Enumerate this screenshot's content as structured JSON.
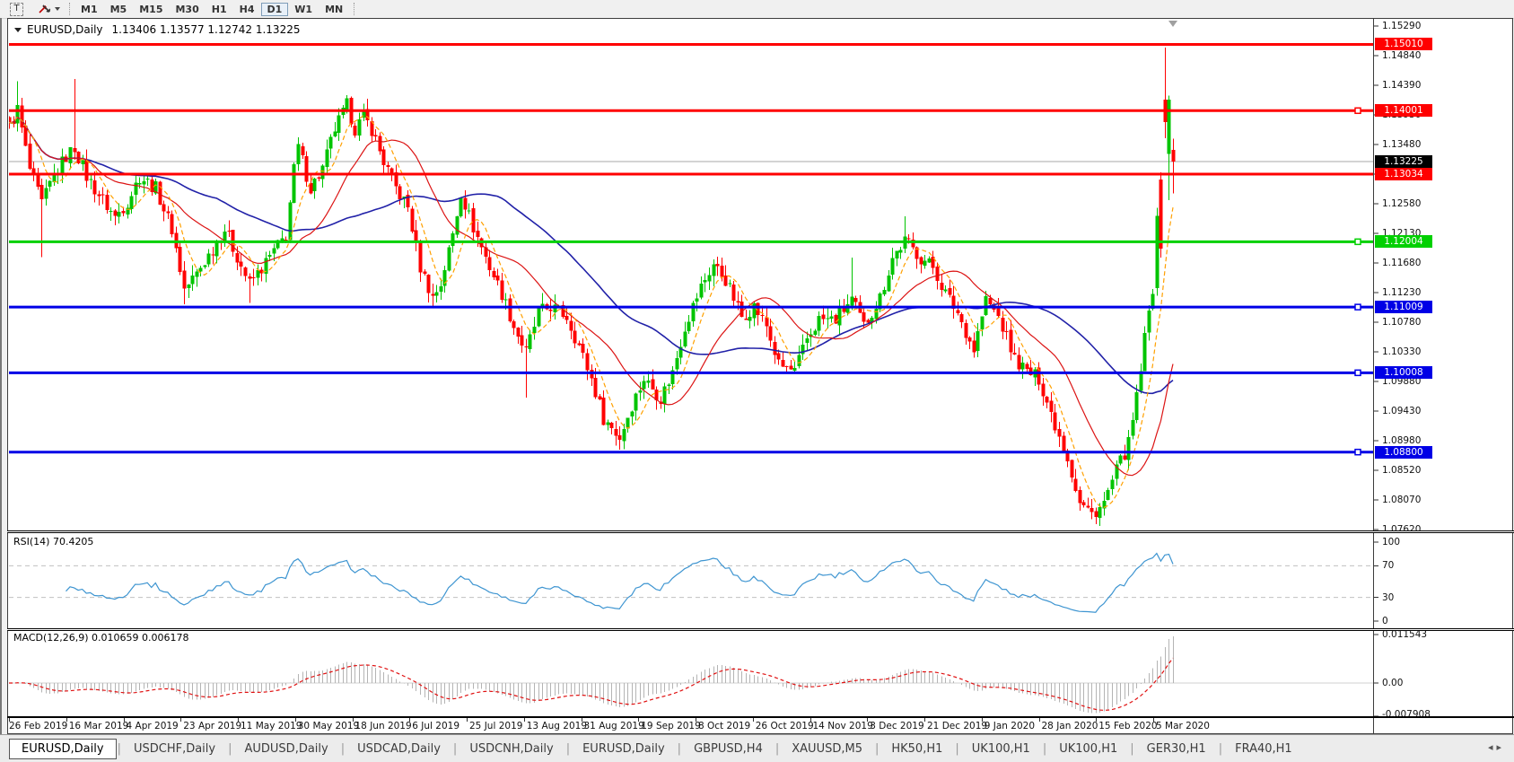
{
  "toolbar": {
    "text_tool_label": "T",
    "timeframes": [
      "M1",
      "M5",
      "M15",
      "M30",
      "H1",
      "H4",
      "D1",
      "W1",
      "MN"
    ],
    "active_timeframe": "D1"
  },
  "icons": {
    "title_marker": "down-triangle",
    "dropdown_caret": "down-triangle",
    "nav_left": "◂",
    "nav_right": "▸"
  },
  "header": {
    "symbol_period": "EURUSD,Daily",
    "ohlc_text": "1.13406 1.13577 1.12742 1.13225"
  },
  "rsi_panel": {
    "label": "RSI(14) 70.4205",
    "axis_labels": [
      "100",
      "70",
      "30",
      "0"
    ]
  },
  "macd_panel": {
    "label": "MACD(12,26,9) 0.010659 0.006178",
    "axis_labels": [
      "0.011543",
      "0.00",
      "-0.007908"
    ]
  },
  "tabs": {
    "items": [
      "EURUSD,Daily",
      "USDCHF,Daily",
      "AUDUSD,Daily",
      "USDCAD,Daily",
      "USDCNH,Daily",
      "EURUSD,Daily",
      "GBPUSD,H4",
      "XAUUSD,M5",
      "HK50,H1",
      "UK100,H1",
      "UK100,H1",
      "GER30,H1",
      "FRA40,H1"
    ],
    "active_index": 0
  },
  "colors": {
    "bull": "#00C400",
    "bear": "#FF0000",
    "ma_fast": "#FFA000",
    "ma_mid": "#DC1414",
    "ma_slow": "#2121A8",
    "rsi_line": "#3E95D1",
    "macd_hist": "#B4B4B4",
    "macd_signal": "#E01010",
    "level_dash": "#C0C0C0",
    "current_line": "#A8A8A8",
    "badge_black": "#000000",
    "shift_marker": "#A0A0A0"
  },
  "chart_data": {
    "type": "candlestick",
    "symbol": "EURUSD",
    "period": "Daily",
    "title": "EURUSD,Daily",
    "current_bar": {
      "open": 1.13406,
      "high": 1.13577,
      "low": 1.12742,
      "close": 1.13225
    },
    "price_axis": {
      "max": 1.1529,
      "min": 1.0762,
      "tick_labels": [
        "1.15290",
        "1.14840",
        "1.14390",
        "1.13930",
        "1.13480",
        "1.13030",
        "1.12580",
        "1.12130",
        "1.11680",
        "1.11230",
        "1.10780",
        "1.10330",
        "1.09880",
        "1.09430",
        "1.08980",
        "1.08520",
        "1.08070",
        "1.07620"
      ]
    },
    "time_axis": {
      "labels": [
        "26 Feb 2019",
        "16 Mar 2019",
        "4 Apr 2019",
        "23 Apr 2019",
        "11 May 2019",
        "30 May 2019",
        "18 Jun 2019",
        "6 Jul 2019",
        "25 Jul 2019",
        "13 Aug 2019",
        "31 Aug 2019",
        "19 Sep 2019",
        "8 Oct 2019",
        "26 Oct 2019",
        "14 Nov 2019",
        "3 Dec 2019",
        "21 Dec 2019",
        "9 Jan 2020",
        "28 Jan 2020",
        "15 Feb 2020",
        "5 Mar 2020"
      ]
    },
    "bar_count": 287,
    "close_path": [
      [
        0,
        1.1375
      ],
      [
        2,
        1.1402
      ],
      [
        5,
        1.131
      ],
      [
        8,
        1.1258
      ],
      [
        11,
        1.1302
      ],
      [
        14,
        1.133
      ],
      [
        16,
        1.1344
      ],
      [
        19,
        1.13
      ],
      [
        22,
        1.1272
      ],
      [
        26,
        1.1238
      ],
      [
        29,
        1.1262
      ],
      [
        32,
        1.13
      ],
      [
        36,
        1.1282
      ],
      [
        40,
        1.122
      ],
      [
        43,
        1.1128
      ],
      [
        46,
        1.1152
      ],
      [
        50,
        1.119
      ],
      [
        53,
        1.122
      ],
      [
        56,
        1.1178
      ],
      [
        59,
        1.1136
      ],
      [
        62,
        1.116
      ],
      [
        65,
        1.1186
      ],
      [
        68,
        1.121
      ],
      [
        70,
        1.131
      ],
      [
        71,
        1.1344
      ],
      [
        74,
        1.1282
      ],
      [
        77,
        1.1312
      ],
      [
        80,
        1.1372
      ],
      [
        83,
        1.1408
      ],
      [
        85,
        1.1372
      ],
      [
        87,
        1.139
      ],
      [
        89,
        1.1372
      ],
      [
        92,
        1.1322
      ],
      [
        95,
        1.1282
      ],
      [
        98,
        1.1252
      ],
      [
        101,
        1.1162
      ],
      [
        104,
        1.1116
      ],
      [
        106,
        1.1136
      ],
      [
        109,
        1.1212
      ],
      [
        111,
        1.1276
      ],
      [
        114,
        1.1222
      ],
      [
        118,
        1.1162
      ],
      [
        121,
        1.1122
      ],
      [
        124,
        1.1072
      ],
      [
        127,
        1.1032
      ],
      [
        130,
        1.1092
      ],
      [
        133,
        1.1102
      ],
      [
        137,
        1.1086
      ],
      [
        140,
        1.1042
      ],
      [
        143,
        1.0992
      ],
      [
        146,
        1.0932
      ],
      [
        150,
        1.0902
      ],
      [
        153,
        1.0952
      ],
      [
        156,
        1.0992
      ],
      [
        160,
        1.0962
      ],
      [
        163,
        1.1002
      ],
      [
        166,
        1.1072
      ],
      [
        170,
        1.1132
      ],
      [
        173,
        1.1166
      ],
      [
        176,
        1.1142
      ],
      [
        180,
        1.1086
      ],
      [
        183,
        1.1102
      ],
      [
        186,
        1.1072
      ],
      [
        189,
        1.1012
      ],
      [
        193,
        1.1002
      ],
      [
        196,
        1.1052
      ],
      [
        199,
        1.1082
      ],
      [
        203,
        1.1082
      ],
      [
        207,
        1.1112
      ],
      [
        210,
        1.1072
      ],
      [
        214,
        1.1116
      ],
      [
        217,
        1.1176
      ],
      [
        220,
        1.1202
      ],
      [
        224,
        1.1176
      ],
      [
        227,
        1.1162
      ],
      [
        230,
        1.1122
      ],
      [
        233,
        1.1092
      ],
      [
        237,
        1.1036
      ],
      [
        240,
        1.1112
      ],
      [
        243,
        1.1086
      ],
      [
        247,
        1.1022
      ],
      [
        250,
        1.1002
      ],
      [
        253,
        1.0992
      ],
      [
        257,
        1.0922
      ],
      [
        260,
        1.0872
      ],
      [
        263,
        1.0802
      ],
      [
        266,
        1.0786
      ],
      [
        269,
        1.0802
      ],
      [
        272,
        1.0852
      ],
      [
        275,
        1.0892
      ],
      [
        277,
        1.0962
      ],
      [
        279,
        1.1052
      ],
      [
        281,
        1.113
      ]
    ],
    "wick_overrides": {
      "2": {
        "h": 1.1445
      },
      "8": {
        "l": 1.1177
      },
      "16": {
        "h": 1.1448
      },
      "43": {
        "l": 1.1105
      },
      "59": {
        "l": 1.1107
      },
      "83": {
        "h": 1.1421
      },
      "104": {
        "l": 1.1099
      },
      "127": {
        "l": 1.0963
      },
      "150": {
        "l": 1.0884
      },
      "207": {
        "h": 1.1176
      },
      "220": {
        "h": 1.1239
      },
      "266": {
        "l": 1.0778
      }
    },
    "explicit_bars": {
      "282": {
        "o": 1.113,
        "c": 1.124,
        "h": 1.1252,
        "l": 1.1118
      },
      "283": {
        "o": 1.1295,
        "c": 1.119,
        "h": 1.1306,
        "l": 1.1176
      },
      "284": {
        "o": 1.1417,
        "c": 1.1383,
        "h": 1.1496,
        "l": 1.1358
      },
      "285": {
        "o": 1.1334,
        "c": 1.1417,
        "h": 1.1423,
        "l": 1.1264
      },
      "286": {
        "o": 1.13406,
        "c": 1.13225,
        "h": 1.13577,
        "l": 1.12742
      }
    },
    "indicators": {
      "moving_averages": [
        {
          "name": "fast",
          "period": 7,
          "style": "dashed"
        },
        {
          "name": "medium",
          "period": 20,
          "style": "solid"
        },
        {
          "name": "slow",
          "period": 52,
          "style": "solid"
        }
      ],
      "rsi": {
        "period": 14,
        "value": 70.4205,
        "levels": [
          70,
          30
        ],
        "range": [
          0,
          100
        ]
      },
      "macd": {
        "fast": 12,
        "slow": 26,
        "signal": 9,
        "macd_value": 0.010659,
        "signal_value": 0.006178,
        "axis_max": 0.011543,
        "axis_min": -0.007908
      }
    },
    "horizontal_lines": [
      {
        "price": 1.1501,
        "label": "1.15010",
        "color": "#FF0000",
        "handle": false
      },
      {
        "price": 1.14001,
        "label": "1.14001",
        "color": "#FF0000",
        "handle": true
      },
      {
        "price": 1.13034,
        "label": "1.13034",
        "color": "#FF0000",
        "handle": false
      },
      {
        "price": 1.12004,
        "label": "1.12004",
        "color": "#00D000",
        "handle": true
      },
      {
        "price": 1.11009,
        "label": "1.11009",
        "color": "#0000E6",
        "handle": true
      },
      {
        "price": 1.10008,
        "label": "1.10008",
        "color": "#0000E6",
        "handle": true
      },
      {
        "price": 1.088,
        "label": "1.08800",
        "color": "#0000E6",
        "handle": true
      }
    ],
    "current_price": {
      "value": 1.13225,
      "label": "1.13225"
    }
  }
}
